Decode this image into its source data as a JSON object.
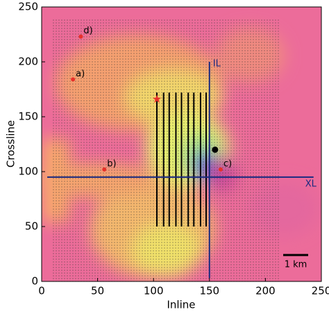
{
  "chart_data": {
    "type": "map",
    "xlabel": "Inline",
    "ylabel": "Crossline",
    "xlim": [
      0,
      250
    ],
    "ylim": [
      0,
      250
    ],
    "xticks": [
      0,
      50,
      100,
      150,
      200,
      250
    ],
    "yticks": [
      0,
      50,
      100,
      150,
      200,
      250
    ],
    "points": [
      {
        "label": "a)",
        "x": 28,
        "y": 184
      },
      {
        "label": "b)",
        "x": 56,
        "y": 102
      },
      {
        "label": "c)",
        "x": 160,
        "y": 102
      },
      {
        "label": "d)",
        "x": 35,
        "y": 223
      }
    ],
    "point_color": "#e8302a",
    "star": {
      "x": 103,
      "y": 166
    },
    "dot": {
      "x": 155,
      "y": 120
    },
    "lines": [
      {
        "label": "IL",
        "x": [
          150,
          150
        ],
        "y": [
          3,
          200
        ]
      },
      {
        "label": "XL",
        "x": [
          5,
          243
        ],
        "y": [
          95,
          95
        ]
      }
    ],
    "line_color": "#1a2a80",
    "survey_lines": {
      "x": [
        103,
        109,
        114,
        120,
        125,
        131,
        136,
        142,
        147
      ],
      "y": [
        50,
        172
      ]
    },
    "scale_bar": {
      "label": "1 km"
    }
  }
}
